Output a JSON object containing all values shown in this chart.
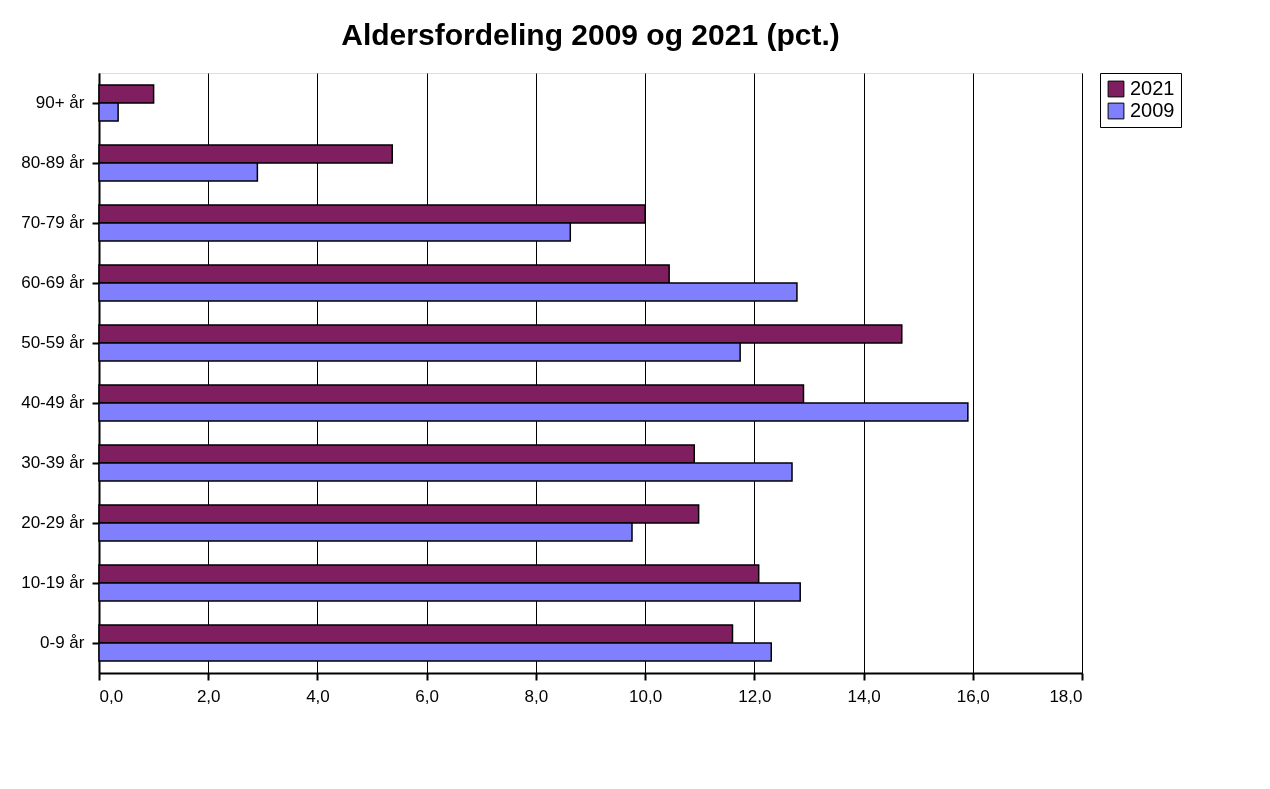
{
  "chart_data": {
    "type": "bar",
    "orientation": "horizontal",
    "title": "Aldersfordeling 2009 og 2021 (pct.)",
    "categories": [
      "90+ år",
      "80-89 år",
      "70-79 år",
      "60-69 år",
      "50-59 år",
      "40-49 år",
      "30-39 år",
      "20-29 år",
      "10-19 år",
      "0-9 år"
    ],
    "series": [
      {
        "name": "2021",
        "color": "#7f1f5f",
        "values": [
          1.0,
          5.37,
          10.0,
          10.44,
          14.7,
          12.9,
          10.9,
          10.98,
          12.08,
          11.6
        ]
      },
      {
        "name": "2009",
        "color": "#8080ff",
        "values": [
          0.35,
          2.9,
          8.63,
          12.78,
          11.74,
          15.91,
          12.69,
          9.76,
          12.84,
          12.31
        ]
      }
    ],
    "xlim": [
      0,
      18
    ],
    "xticks": [
      {
        "value": 0,
        "label": "0,0"
      },
      {
        "value": 2,
        "label": "2,0"
      },
      {
        "value": 4,
        "label": "4,0"
      },
      {
        "value": 6,
        "label": "6,0"
      },
      {
        "value": 8,
        "label": "8,0"
      },
      {
        "value": 10,
        "label": "10,0"
      },
      {
        "value": 12,
        "label": "12,0"
      },
      {
        "value": 14,
        "label": "14,0"
      },
      {
        "value": 16,
        "label": "16,0"
      },
      {
        "value": 18,
        "label": "18,0"
      }
    ],
    "grid": "x",
    "legend": "right"
  }
}
